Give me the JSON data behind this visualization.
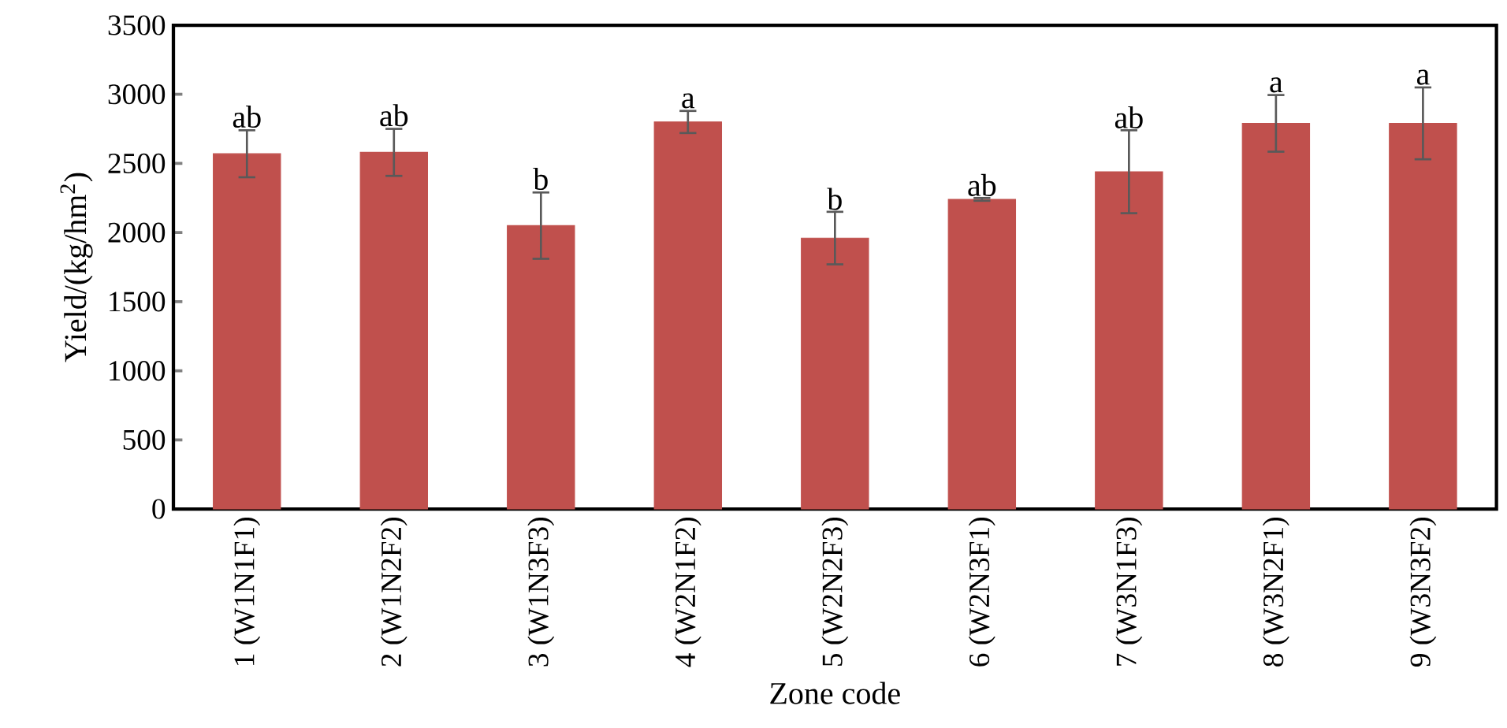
{
  "chart_data": {
    "type": "bar",
    "xlabel": "Zone code",
    "ylabel": "Yield/(kg/hm$^{2}$)",
    "categories": [
      "1 (W1N1F1)",
      "2 (W1N2F2)",
      "3 (W1N3F3)",
      "4 (W2N1F2)",
      "5 (W2N2F3)",
      "6 (W2N3F1)",
      "7 (W3N1F3)",
      "8 (W3N2F1)",
      "9 (W3N3F2)"
    ],
    "values": [
      2570,
      2580,
      2050,
      2800,
      1960,
      2240,
      2440,
      2790,
      2790
    ],
    "errors": [
      170,
      170,
      240,
      80,
      190,
      10,
      300,
      205,
      260
    ],
    "color": "#c0504d",
    "ylim": [
      0,
      3500
    ],
    "yticks": [
      0,
      500,
      1000,
      1500,
      2000,
      2500,
      3000,
      3500
    ],
    "grid": false,
    "annotations": [
      {
        "text": "ab",
        "x": "1 (W1N1F1)",
        "y": 2740
      },
      {
        "text": "ab",
        "x": "2 (W1N2F2)",
        "y": 2750
      },
      {
        "text": "b",
        "x": "3 (W1N3F3)",
        "y": 2290
      },
      {
        "text": "a",
        "x": "4 (W2N1F2)",
        "y": 2880
      },
      {
        "text": "b",
        "x": "5 (W2N2F3)",
        "y": 2145
      },
      {
        "text": "ab",
        "x": "6 (W2N3F1)",
        "y": 2245
      },
      {
        "text": "ab",
        "x": "7 (W3N1F3)",
        "y": 2735
      },
      {
        "text": "a",
        "x": "8 (W3N2F1)",
        "y": 2995
      },
      {
        "text": "a",
        "x": "9 (W3N3F2)",
        "y": 3050
      }
    ]
  }
}
